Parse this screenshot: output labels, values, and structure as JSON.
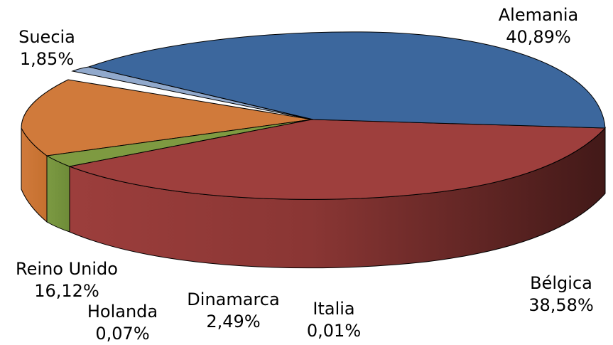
{
  "chart_data": {
    "type": "pie",
    "style": "3d-exploded-perspective",
    "categories": [
      "Alemania",
      "Bélgica",
      "Italia",
      "Dinamarca",
      "Holanda",
      "Reino Unido",
      "Suecia"
    ],
    "values": [
      40.89,
      38.58,
      0.01,
      2.49,
      0.07,
      16.12,
      1.85
    ],
    "value_labels": [
      "40,89%",
      "38,58%",
      "0,01%",
      "2,49%",
      "0,07%",
      "16,12%",
      "1,85%"
    ],
    "colors": [
      "#3C679D",
      "#9E3F3D",
      "#7E9A41",
      "#7E9A41",
      "#7E9A41",
      "#D2793A",
      "#91A9CC"
    ],
    "legend": "none",
    "title": ""
  }
}
